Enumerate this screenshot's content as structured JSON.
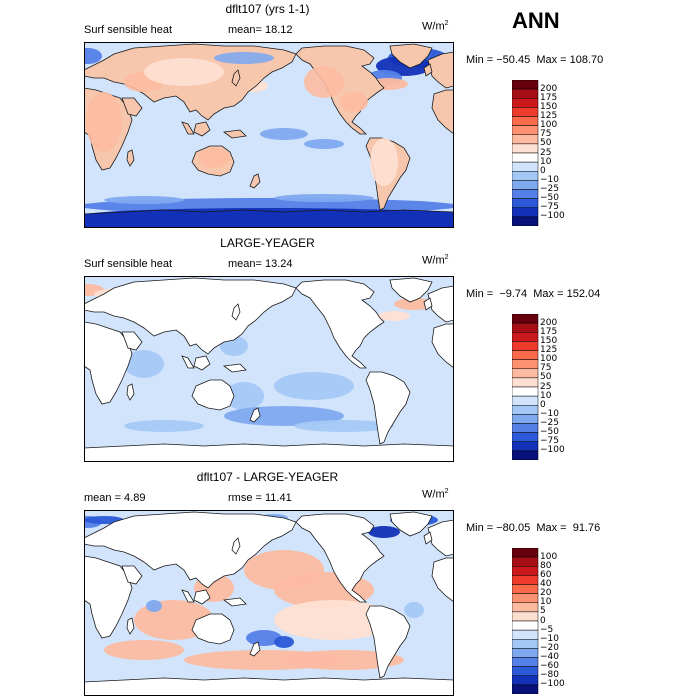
{
  "season": "ANN",
  "colors": {
    "ocean_base": "#d2e4fb",
    "land": "#ffffff",
    "coast": "#1a1a1a"
  },
  "panels": [
    {
      "title": "dflt107 (yrs 1-1)",
      "left_label": "Surf sensible heat",
      "right_label": "mean=   18.12",
      "units": "W/m",
      "units_sup": "2",
      "minmax": "Min = −50.45  Max = 108.70",
      "colorbar": {
        "labels": [
          "200",
          "175",
          "150",
          "125",
          "100",
          "75",
          "50",
          "25",
          "10",
          "0",
          "−10",
          "−25",
          "−50",
          "−75",
          "−100"
        ],
        "colors": [
          "#67000d",
          "#a50f15",
          "#cb181d",
          "#ef3b2c",
          "#fb6a4a",
          "#fc9272",
          "#fcbba1",
          "#fee0d2",
          "#ffffff",
          "#d2e4fb",
          "#a4c8f5",
          "#7fa9ef",
          "#5580e8",
          "#2b59d8",
          "#1230b8",
          "#08107a"
        ]
      },
      "land_fill": "tan"
    },
    {
      "title": "LARGE-YEAGER",
      "left_label": "Surf sensible heat",
      "right_label": "mean=   13.24",
      "units": "W/m",
      "units_sup": "2",
      "minmax": "Min =  −9.74  Max = 152.04",
      "colorbar": {
        "labels": [
          "200",
          "175",
          "150",
          "125",
          "100",
          "75",
          "50",
          "25",
          "10",
          "0",
          "−10",
          "−25",
          "−50",
          "−75",
          "−100"
        ],
        "colors": [
          "#67000d",
          "#a50f15",
          "#cb181d",
          "#ef3b2c",
          "#fb6a4a",
          "#fc9272",
          "#fcbba1",
          "#fee0d2",
          "#ffffff",
          "#d2e4fb",
          "#a4c8f5",
          "#7fa9ef",
          "#5580e8",
          "#2b59d8",
          "#1230b8",
          "#08107a"
        ]
      },
      "land_fill": "white"
    },
    {
      "title": "dflt107 - LARGE-YEAGER",
      "left_label": "mean =    4.89",
      "right_label": "rmse =   11.41",
      "units": "W/m",
      "units_sup": "2",
      "minmax": "Min = −80.05  Max =  91.76",
      "colorbar": {
        "labels": [
          "100",
          "80",
          "60",
          "40",
          "20",
          "10",
          "5",
          "0",
          "−5",
          "−10",
          "−20",
          "−40",
          "−60",
          "−80",
          "−100"
        ],
        "colors": [
          "#67000d",
          "#a50f15",
          "#cb181d",
          "#ef3b2c",
          "#fb6a4a",
          "#fc9272",
          "#fcbba1",
          "#fee0d2",
          "#ffffff",
          "#d2e4fb",
          "#a4c8f5",
          "#7fa9ef",
          "#5580e8",
          "#2b59d8",
          "#1230b8",
          "#08107a"
        ]
      },
      "land_fill": "white"
    }
  ]
}
